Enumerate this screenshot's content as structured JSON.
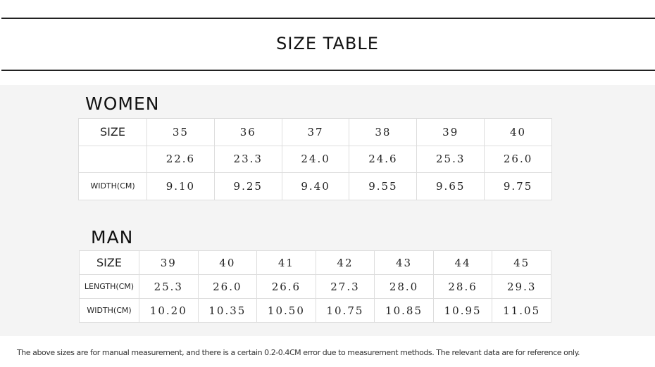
{
  "header": {
    "title": "SIZE TABLE"
  },
  "women": {
    "title": "WOMEN",
    "size_label": "SIZE",
    "sizes": [
      "35",
      "36",
      "37",
      "38",
      "39",
      "40"
    ],
    "rows": [
      {
        "values": [
          "22.6",
          "23.3",
          "24.0",
          "24.6",
          "25.3",
          "26.0"
        ]
      },
      {
        "label": "WIDTH(CM)",
        "values": [
          "9.10",
          "9.25",
          "9.40",
          "9.55",
          "9.65",
          "9.75"
        ]
      }
    ]
  },
  "man": {
    "title": "MAN",
    "size_label": "SIZE",
    "sizes": [
      "39",
      "40",
      "41",
      "42",
      "43",
      "44",
      "45"
    ],
    "rows": [
      {
        "label": "LENGTH(CM)",
        "values": [
          "25.3",
          "26.0",
          "26.6",
          "27.3",
          "28.0",
          "28.6",
          "29.3"
        ]
      },
      {
        "label": "WIDTH(CM)",
        "values": [
          "10.20",
          "10.35",
          "10.50",
          "10.75",
          "10.85",
          "10.95",
          "11.05"
        ]
      }
    ]
  },
  "footer": {
    "note": "The above sizes are for manual measurement, and there is a certain 0.2-0.4CM error due to measurement methods. The relevant data are for reference only."
  }
}
